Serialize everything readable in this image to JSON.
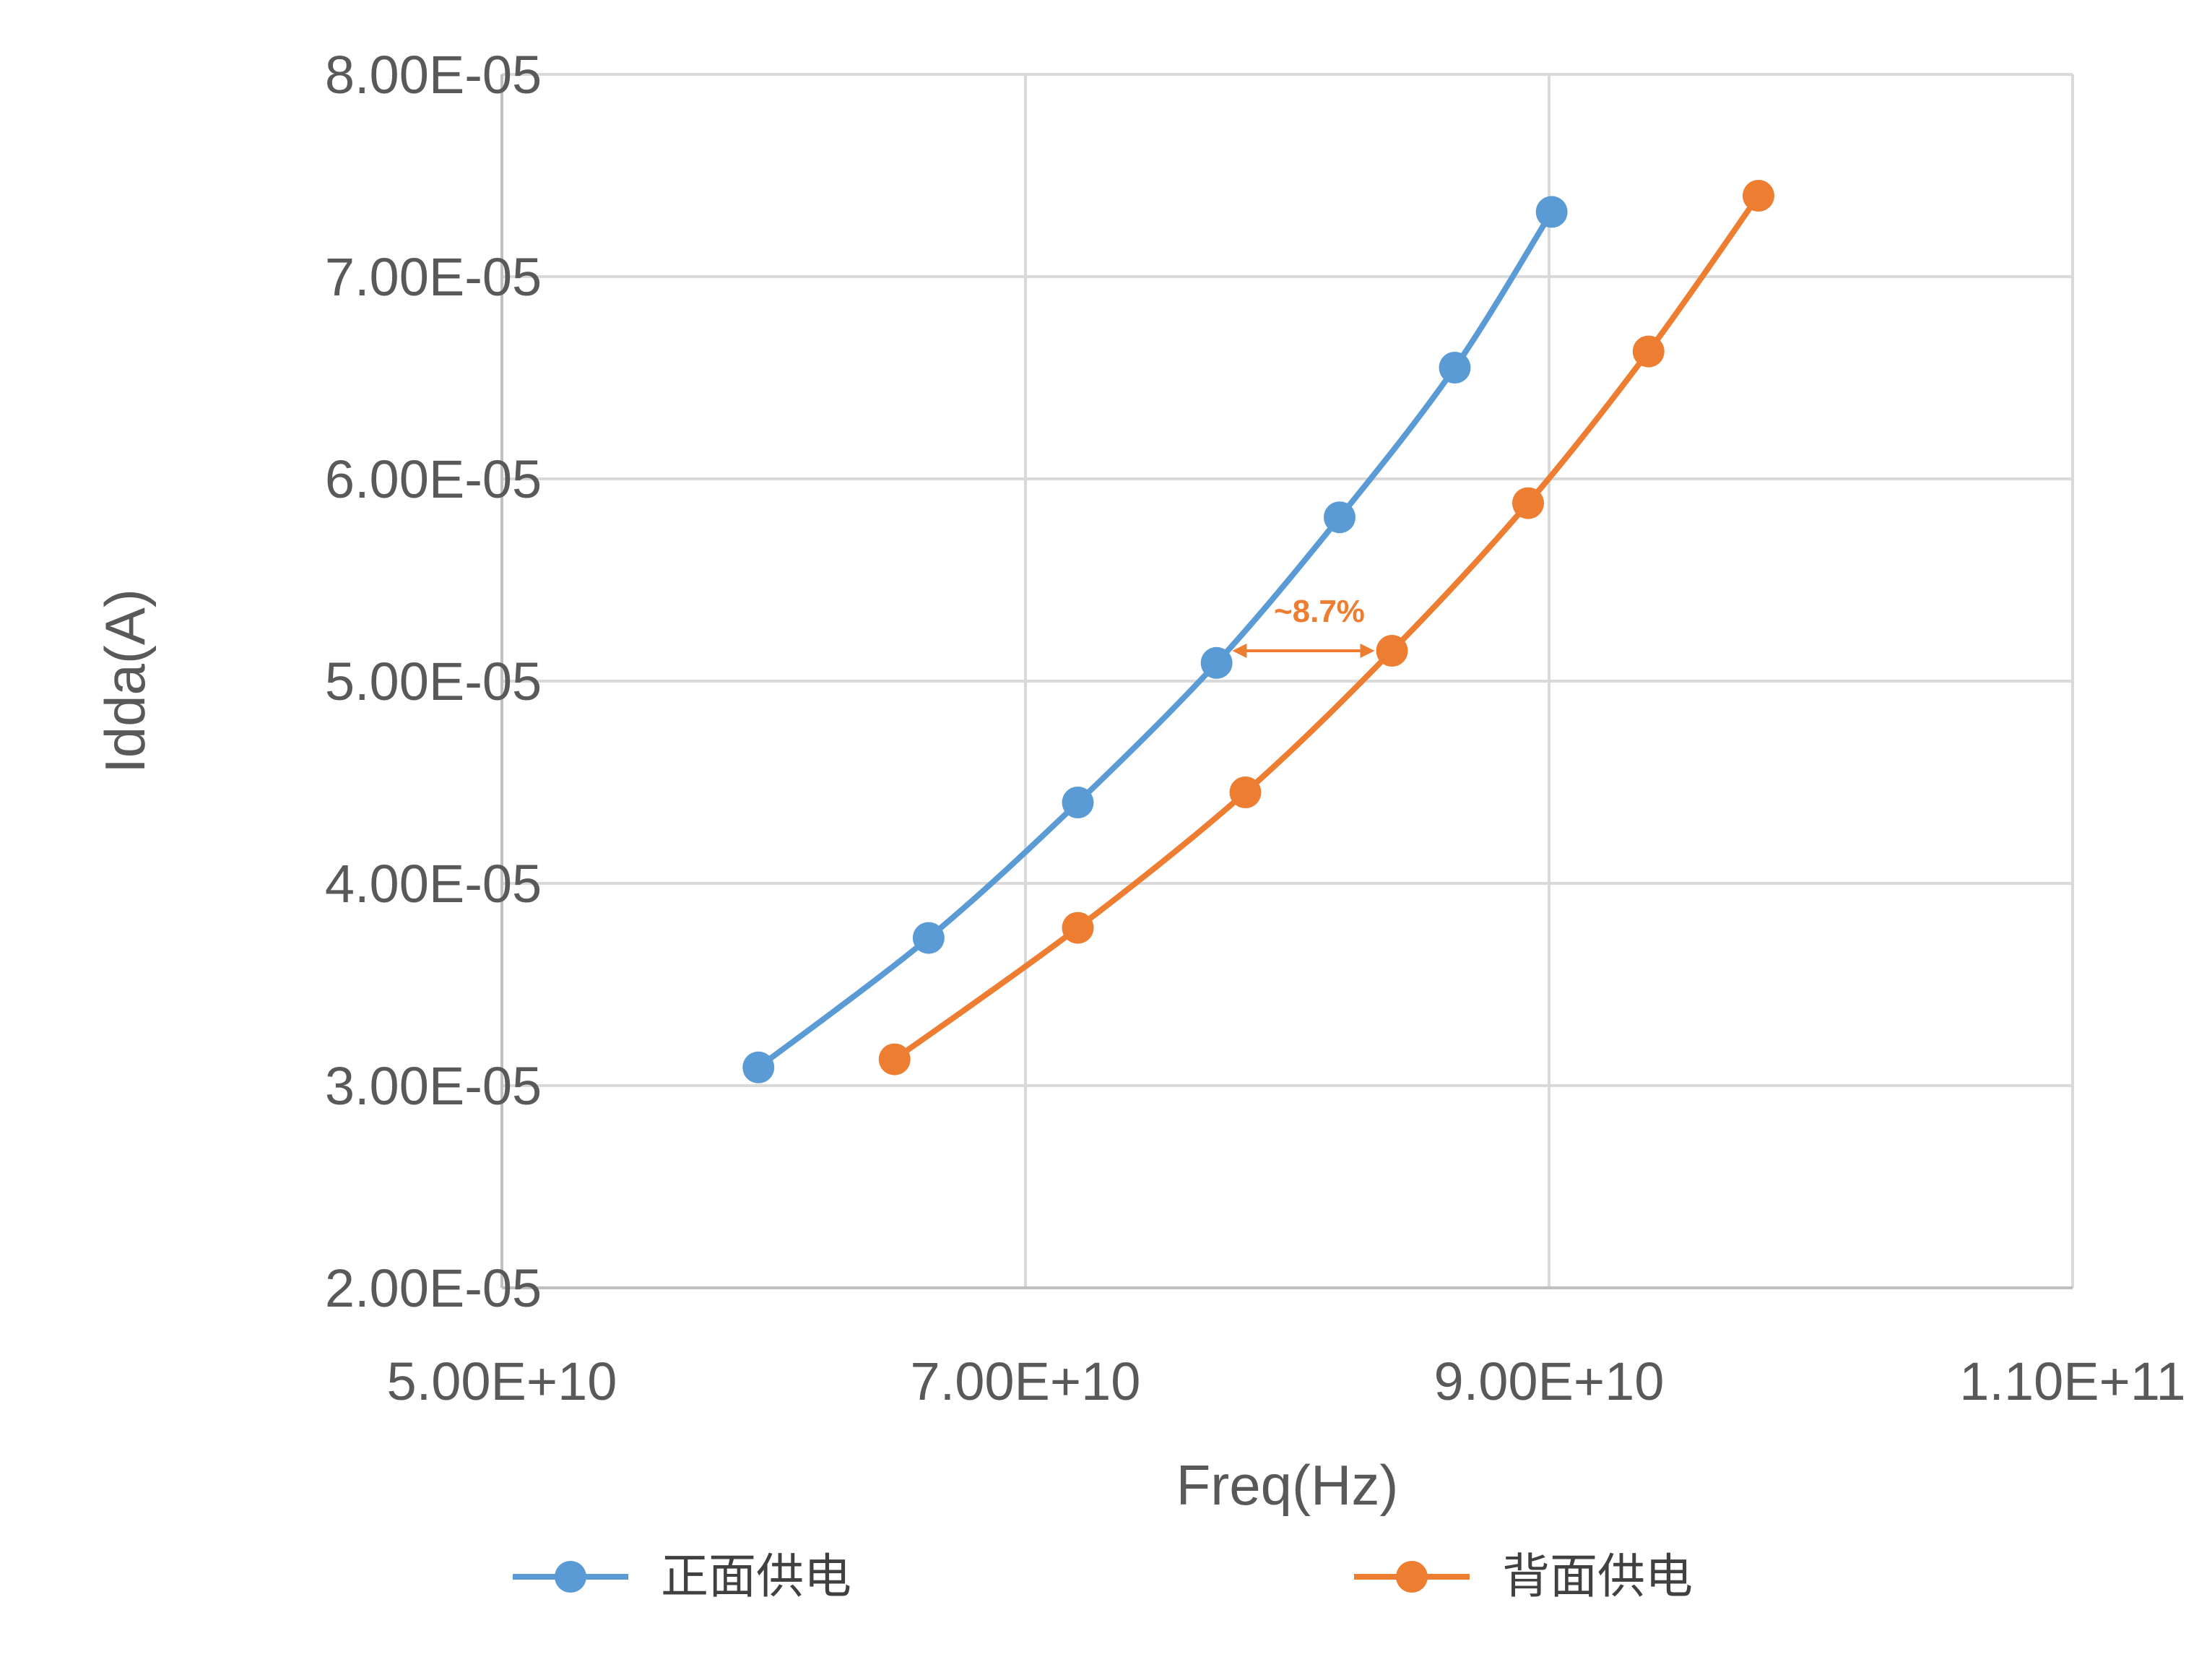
{
  "chart_data": {
    "type": "line",
    "xlabel": "Freq(Hz)",
    "ylabel": "Idda(A)",
    "xlim": [
      50000000000.0,
      110000000000.0
    ],
    "ylim": [
      2e-05,
      8e-05
    ],
    "x_ticks": [
      50000000000.0,
      70000000000.0,
      90000000000.0,
      110000000000.0
    ],
    "x_tick_labels": [
      "5.00E+10",
      "7.00E+10",
      "9.00E+10",
      "1.10E+11"
    ],
    "y_ticks": [
      2e-05,
      3e-05,
      4e-05,
      5e-05,
      6e-05,
      7e-05,
      8e-05
    ],
    "y_tick_labels": [
      "2.00E-05",
      "3.00E-05",
      "4.00E-05",
      "5.00E-05",
      "6.00E-05",
      "7.00E-05",
      "8.00E-05"
    ],
    "grid": true,
    "legend_position": "bottom",
    "series": [
      {
        "name": "正面供电",
        "color": "#5B9BD5",
        "x": [
          59800000000.0,
          66300000000.0,
          72000000000.0,
          77300000000.0,
          82000000000.0,
          86400000000.0,
          90100000000.0
        ],
        "y": [
          3.09e-05,
          3.73e-05,
          4.4e-05,
          5.09e-05,
          5.81e-05,
          6.55e-05,
          7.32e-05
        ]
      },
      {
        "name": "背面供电",
        "color": "#ED7D31",
        "x": [
          65000000000.0,
          72000000000.0,
          78400000000.0,
          84000000000.0,
          89200000000.0,
          93800000000.0,
          98000000000.0
        ],
        "y": [
          3.13e-05,
          3.78e-05,
          4.45e-05,
          5.15e-05,
          5.88e-05,
          6.63e-05,
          7.4e-05
        ]
      }
    ],
    "annotations": [
      {
        "text": "~8.7%",
        "color": "#ED7D31",
        "from_x": 77900000000.0,
        "to_x": 84000000000.0,
        "y": 5.15e-05
      }
    ]
  }
}
